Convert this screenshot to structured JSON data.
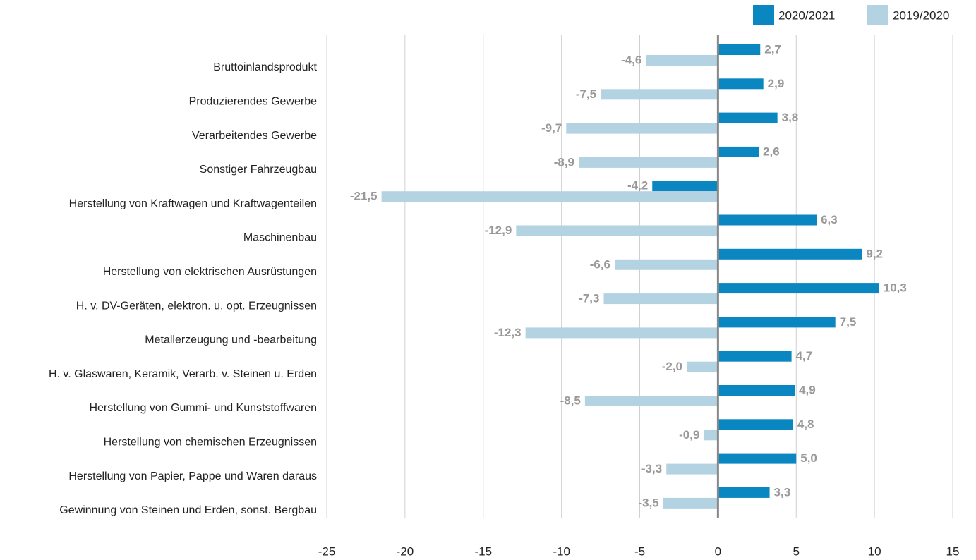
{
  "chart_data": {
    "type": "hbar",
    "categories": [
      "Bruttoinlandsprodukt",
      "Produzierendes Gewerbe",
      "Verarbeitendes Gewerbe",
      "Sonstiger Fahrzeugbau",
      "Herstellung von Kraftwagen und Kraftwagenteilen",
      "Maschinenbau",
      "Herstellung von elektrischen Ausrüstungen",
      "H. v. DV-Geräten, elektron. u. opt. Erzeugnissen",
      "Metallerzeugung und -bearbeitung",
      "H. v. Glaswaren, Keramik, Verarb. v. Steinen u. Erden",
      "Herstellung von Gummi- und Kunststoffwaren",
      "Herstellung von chemischen Erzeugnissen",
      "Herstellung von Papier, Pappe und Waren daraus",
      "Gewinnung von Steinen und Erden, sonst. Bergbau"
    ],
    "series": [
      {
        "name": "2020/2021",
        "color": "#0a87c0",
        "values": [
          2.7,
          2.9,
          3.8,
          2.6,
          -4.2,
          6.3,
          9.2,
          10.3,
          7.5,
          4.7,
          4.9,
          4.8,
          5.0,
          3.3
        ],
        "value_labels": [
          "2,7",
          "2,9",
          "3,8",
          "2,6",
          "-4,2",
          "6,3",
          "9,2",
          "10,3",
          "7,5",
          "4,7",
          "4,9",
          "4,8",
          "5,0",
          "3,3"
        ]
      },
      {
        "name": "2019/2020",
        "color": "#b3d3e3",
        "values": [
          -4.6,
          -7.5,
          -9.7,
          -8.9,
          -21.5,
          -12.9,
          -6.6,
          -7.3,
          -12.3,
          -2.0,
          -8.5,
          -0.9,
          -3.3,
          -3.5
        ],
        "value_labels": [
          "-4,6",
          "-7,5",
          "-9,7",
          "-8,9",
          "-21,5",
          "-12,9",
          "-6,6",
          "-7,3",
          "-12,3",
          "-2,0",
          "-8,5",
          "-0,9",
          "-3,3",
          "-3,5"
        ]
      }
    ],
    "xlim": [
      -25,
      15
    ],
    "xticks": [
      -25,
      -20,
      -15,
      -10,
      -5,
      0,
      5,
      10,
      15
    ],
    "grid": true,
    "legend": "top-right"
  }
}
